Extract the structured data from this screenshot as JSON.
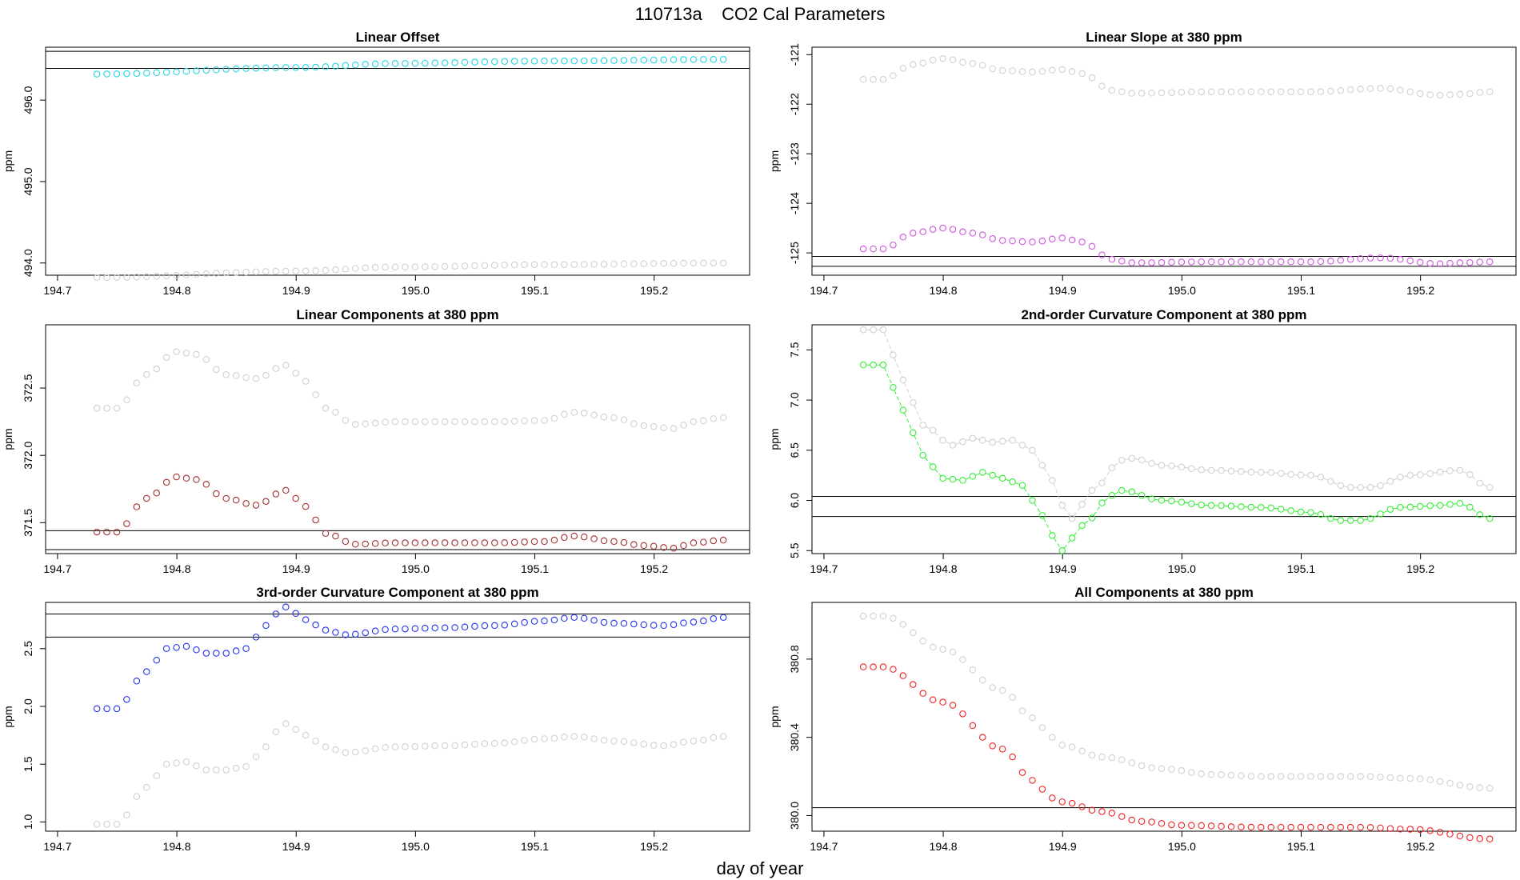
{
  "figure": {
    "main_title": "110713a    CO2 Cal Parameters",
    "xlabel": "day of year",
    "background_series_color": "#d0d0d0",
    "reference_line_color": "#000000"
  },
  "chart_data": [
    {
      "type": "scatter",
      "title": "Linear Offset",
      "ylabel": "ppm",
      "xlim": [
        194.69,
        195.28
      ],
      "ylim": [
        493.85,
        496.65
      ],
      "xticks": [
        "194.7",
        "194.8",
        "194.9",
        "195.0",
        "195.1",
        "195.2"
      ],
      "yticks": [
        "494.0",
        "495.0",
        "496.0"
      ],
      "hlines": [
        496.39,
        496.6
      ],
      "x_start": 194.733,
      "x_end": 195.258,
      "n_points": 64,
      "series": [
        {
          "name": "reference",
          "color": "#d0d0d0",
          "connected": false,
          "keys": [
            [
              0,
              493.82
            ],
            [
              20,
              493.9
            ],
            [
              30,
              493.95
            ],
            [
              45,
              493.98
            ],
            [
              63,
              494.0
            ]
          ]
        },
        {
          "name": "parameter",
          "color": "#22d3e6",
          "connected": false,
          "keys": [
            [
              0,
              496.32
            ],
            [
              20,
              496.4
            ],
            [
              30,
              496.45
            ],
            [
              45,
              496.48
            ],
            [
              63,
              496.5
            ]
          ]
        }
      ]
    },
    {
      "type": "scatter",
      "title": "Linear Slope at 380 ppm",
      "ylabel": "ppm",
      "xlim": [
        194.69,
        195.28
      ],
      "ylim": [
        -125.45,
        -120.85
      ],
      "xticks": [
        "194.7",
        "194.8",
        "194.9",
        "195.0",
        "195.1",
        "195.2"
      ],
      "yticks": [
        "-121",
        "-122",
        "-123",
        "-124",
        "-125"
      ],
      "hlines": [
        -125.07,
        -125.27
      ],
      "x_start": 194.733,
      "x_end": 195.258,
      "n_points": 64,
      "series": [
        {
          "name": "reference",
          "color": "#d0d0d0",
          "connected": false,
          "keys": [
            [
              0,
              -121.5
            ],
            [
              2,
              -121.5
            ],
            [
              5,
              -121.2
            ],
            [
              8,
              -121.08
            ],
            [
              11,
              -121.18
            ],
            [
              14,
              -121.32
            ],
            [
              17,
              -121.35
            ],
            [
              20,
              -121.3
            ],
            [
              22,
              -121.38
            ],
            [
              25,
              -121.72
            ],
            [
              27,
              -121.78
            ],
            [
              35,
              -121.75
            ],
            [
              45,
              -121.75
            ],
            [
              52,
              -121.68
            ],
            [
              58,
              -121.82
            ],
            [
              60,
              -121.8
            ],
            [
              63,
              -121.75
            ]
          ]
        },
        {
          "name": "parameter",
          "color": "#cc55dd",
          "connected": false,
          "keys": [
            [
              0,
              -124.92
            ],
            [
              2,
              -124.92
            ],
            [
              5,
              -124.6
            ],
            [
              8,
              -124.5
            ],
            [
              11,
              -124.6
            ],
            [
              14,
              -124.75
            ],
            [
              17,
              -124.78
            ],
            [
              20,
              -124.7
            ],
            [
              22,
              -124.78
            ],
            [
              25,
              -125.13
            ],
            [
              27,
              -125.2
            ],
            [
              35,
              -125.18
            ],
            [
              45,
              -125.18
            ],
            [
              52,
              -125.1
            ],
            [
              58,
              -125.22
            ],
            [
              60,
              -125.2
            ],
            [
              63,
              -125.18
            ]
          ]
        }
      ]
    },
    {
      "type": "scatter",
      "title": "Linear Components at 380 ppm",
      "ylabel": "ppm",
      "xlim": [
        194.69,
        195.28
      ],
      "ylim": [
        371.27,
        372.97
      ],
      "xticks": [
        "194.7",
        "194.8",
        "194.9",
        "195.0",
        "195.1",
        "195.2"
      ],
      "yticks": [
        "371.5",
        "372.0",
        "372.5"
      ],
      "hlines": [
        371.44,
        371.3
      ],
      "x_start": 194.733,
      "x_end": 195.258,
      "n_points": 64,
      "series": [
        {
          "name": "reference",
          "color": "#d0d0d0",
          "connected": false,
          "keys": [
            [
              0,
              372.35
            ],
            [
              2,
              372.35
            ],
            [
              5,
              372.6
            ],
            [
              8,
              372.77
            ],
            [
              10,
              372.75
            ],
            [
              13,
              372.6
            ],
            [
              16,
              372.57
            ],
            [
              19,
              372.67
            ],
            [
              21,
              372.55
            ],
            [
              23,
              372.35
            ],
            [
              26,
              372.23
            ],
            [
              30,
              372.25
            ],
            [
              40,
              372.25
            ],
            [
              45,
              372.26
            ],
            [
              48,
              372.32
            ],
            [
              52,
              372.28
            ],
            [
              55,
              372.22
            ],
            [
              58,
              372.2
            ],
            [
              60,
              372.25
            ],
            [
              63,
              372.28
            ]
          ]
        },
        {
          "name": "parameter",
          "color": "#a33030",
          "connected": false,
          "keys": [
            [
              0,
              371.43
            ],
            [
              2,
              371.43
            ],
            [
              5,
              371.68
            ],
            [
              8,
              371.84
            ],
            [
              10,
              371.82
            ],
            [
              13,
              371.68
            ],
            [
              16,
              371.63
            ],
            [
              19,
              371.74
            ],
            [
              21,
              371.62
            ],
            [
              23,
              371.42
            ],
            [
              26,
              371.34
            ],
            [
              30,
              371.35
            ],
            [
              40,
              371.35
            ],
            [
              45,
              371.36
            ],
            [
              48,
              371.4
            ],
            [
              52,
              371.36
            ],
            [
              55,
              371.33
            ],
            [
              58,
              371.31
            ],
            [
              60,
              371.35
            ],
            [
              63,
              371.37
            ]
          ]
        }
      ]
    },
    {
      "type": "line",
      "title": "2nd-order Curvature Component at 380 ppm",
      "ylabel": "ppm",
      "xlim": [
        194.69,
        195.28
      ],
      "ylim": [
        5.47,
        7.75
      ],
      "xticks": [
        "194.7",
        "194.8",
        "194.9",
        "195.0",
        "195.1",
        "195.2"
      ],
      "yticks": [
        "5.5",
        "6.0",
        "6.5",
        "7.0",
        "7.5"
      ],
      "hlines": [
        6.04,
        5.84
      ],
      "x_start": 194.733,
      "x_end": 195.258,
      "n_points": 64,
      "series": [
        {
          "name": "reference",
          "color": "#d0d0d0",
          "connected": true,
          "keys": [
            [
              0,
              7.7
            ],
            [
              2,
              7.7
            ],
            [
              4,
              7.2
            ],
            [
              6,
              6.75
            ],
            [
              9,
              6.55
            ],
            [
              11,
              6.62
            ],
            [
              13,
              6.58
            ],
            [
              15,
              6.6
            ],
            [
              17,
              6.5
            ],
            [
              19,
              6.2
            ],
            [
              20,
              5.95
            ],
            [
              21,
              5.82
            ],
            [
              23,
              6.1
            ],
            [
              26,
              6.4
            ],
            [
              27,
              6.42
            ],
            [
              30,
              6.35
            ],
            [
              35,
              6.3
            ],
            [
              40,
              6.28
            ],
            [
              45,
              6.25
            ],
            [
              49,
              6.13
            ],
            [
              51,
              6.13
            ],
            [
              55,
              6.25
            ],
            [
              60,
              6.3
            ],
            [
              63,
              6.13
            ]
          ]
        },
        {
          "name": "parameter",
          "color": "#33ee33",
          "connected": true,
          "keys": [
            [
              0,
              7.35
            ],
            [
              2,
              7.35
            ],
            [
              4,
              6.9
            ],
            [
              6,
              6.45
            ],
            [
              8,
              6.22
            ],
            [
              10,
              6.2
            ],
            [
              12,
              6.28
            ],
            [
              14,
              6.22
            ],
            [
              16,
              6.15
            ],
            [
              18,
              5.85
            ],
            [
              19,
              5.65
            ],
            [
              20,
              5.5
            ],
            [
              22,
              5.75
            ],
            [
              25,
              6.05
            ],
            [
              26,
              6.1
            ],
            [
              30,
              6.0
            ],
            [
              35,
              5.95
            ],
            [
              40,
              5.93
            ],
            [
              45,
              5.88
            ],
            [
              48,
              5.8
            ],
            [
              50,
              5.8
            ],
            [
              54,
              5.93
            ],
            [
              58,
              5.95
            ],
            [
              60,
              5.97
            ],
            [
              63,
              5.82
            ]
          ]
        }
      ]
    },
    {
      "type": "scatter",
      "title": "3rd-order Curvature Component at 380 ppm",
      "ylabel": "ppm",
      "xlim": [
        194.69,
        195.28
      ],
      "ylim": [
        0.92,
        2.9
      ],
      "xticks": [
        "194.7",
        "194.8",
        "194.9",
        "195.0",
        "195.1",
        "195.2"
      ],
      "yticks": [
        "1.0",
        "1.5",
        "2.0",
        "2.5"
      ],
      "hlines": [
        2.8,
        2.6
      ],
      "x_start": 194.733,
      "x_end": 195.258,
      "n_points": 64,
      "series": [
        {
          "name": "reference",
          "color": "#d0d0d0",
          "connected": false,
          "keys": [
            [
              0,
              0.98
            ],
            [
              2,
              0.98
            ],
            [
              5,
              1.3
            ],
            [
              7,
              1.5
            ],
            [
              9,
              1.52
            ],
            [
              11,
              1.45
            ],
            [
              13,
              1.45
            ],
            [
              15,
              1.48
            ],
            [
              17,
              1.65
            ],
            [
              18,
              1.78
            ],
            [
              19,
              1.85
            ],
            [
              21,
              1.75
            ],
            [
              23,
              1.65
            ],
            [
              25,
              1.6
            ],
            [
              30,
              1.65
            ],
            [
              35,
              1.66
            ],
            [
              40,
              1.68
            ],
            [
              45,
              1.72
            ],
            [
              48,
              1.74
            ],
            [
              52,
              1.7
            ],
            [
              57,
              1.66
            ],
            [
              60,
              1.7
            ],
            [
              63,
              1.74
            ]
          ]
        },
        {
          "name": "parameter",
          "color": "#2233ee",
          "connected": false,
          "keys": [
            [
              0,
              1.98
            ],
            [
              2,
              1.98
            ],
            [
              5,
              2.3
            ],
            [
              7,
              2.5
            ],
            [
              9,
              2.52
            ],
            [
              11,
              2.46
            ],
            [
              13,
              2.46
            ],
            [
              15,
              2.5
            ],
            [
              17,
              2.7
            ],
            [
              18,
              2.8
            ],
            [
              19,
              2.86
            ],
            [
              21,
              2.75
            ],
            [
              23,
              2.66
            ],
            [
              25,
              2.62
            ],
            [
              30,
              2.67
            ],
            [
              35,
              2.68
            ],
            [
              40,
              2.7
            ],
            [
              45,
              2.74
            ],
            [
              48,
              2.77
            ],
            [
              52,
              2.72
            ],
            [
              57,
              2.7
            ],
            [
              60,
              2.73
            ],
            [
              63,
              2.77
            ]
          ]
        }
      ]
    },
    {
      "type": "scatter",
      "title": "All Components at 380 ppm",
      "ylabel": "ppm",
      "xlim": [
        194.69,
        195.28
      ],
      "ylim": [
        379.92,
        381.09
      ],
      "xticks": [
        "194.7",
        "194.8",
        "194.9",
        "195.0",
        "195.1",
        "195.2"
      ],
      "yticks": [
        "380.0",
        "380.4",
        "380.8"
      ],
      "hlines": [
        380.04
      ],
      "x_start": 194.733,
      "x_end": 195.258,
      "n_points": 64,
      "series": [
        {
          "name": "reference",
          "color": "#d0d0d0",
          "connected": false,
          "keys": [
            [
              0,
              381.02
            ],
            [
              2,
              381.02
            ],
            [
              8,
              380.85
            ],
            [
              14,
              380.64
            ],
            [
              17,
              380.5
            ],
            [
              19,
              380.4
            ],
            [
              20,
              380.36
            ],
            [
              24,
              380.3
            ],
            [
              30,
              380.24
            ],
            [
              35,
              380.21
            ],
            [
              40,
              380.2
            ],
            [
              50,
              380.2
            ],
            [
              55,
              380.19
            ],
            [
              63,
              380.14
            ]
          ]
        },
        {
          "name": "parameter",
          "color": "#ee2222",
          "connected": false,
          "keys": [
            [
              0,
              380.76
            ],
            [
              2,
              380.76
            ],
            [
              8,
              380.58
            ],
            [
              14,
              380.34
            ],
            [
              17,
              380.18
            ],
            [
              19,
              380.09
            ],
            [
              20,
              380.07
            ],
            [
              24,
              380.02
            ],
            [
              28,
              379.97
            ],
            [
              32,
              379.95
            ],
            [
              40,
              379.94
            ],
            [
              50,
              379.94
            ],
            [
              55,
              379.93
            ],
            [
              63,
              379.88
            ]
          ]
        }
      ]
    }
  ]
}
